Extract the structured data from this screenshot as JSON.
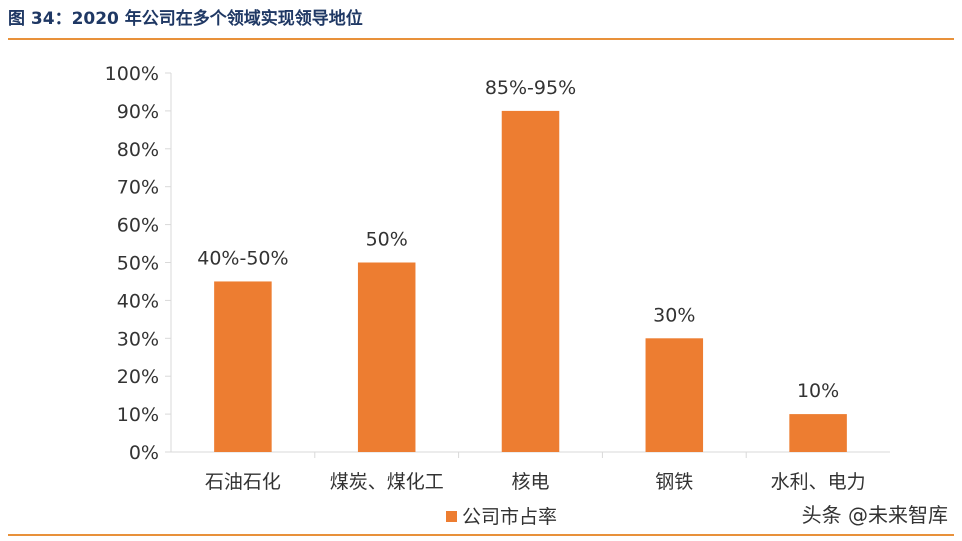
{
  "figure_title": "图 34：2020 年公司在多个领域实现领导地位",
  "watermark": "头条 @未来智库",
  "colors": {
    "bar": "#ed7d31",
    "title": "#1f3864",
    "rule": "#e8913a",
    "axis": "#d9d9d9",
    "text": "#333333"
  },
  "chart_data": {
    "type": "bar",
    "title": "",
    "xlabel": "",
    "ylabel": "",
    "categories": [
      "石油石化",
      "煤炭、煤化工",
      "核电",
      "钢铁",
      "水利、电力"
    ],
    "series": [
      {
        "name": "公司市占率",
        "values": [
          45,
          50,
          90,
          30,
          10
        ],
        "data_labels": [
          "40%-50%",
          "50%",
          "85%-95%",
          "30%",
          "10%"
        ]
      }
    ],
    "ylim": [
      0,
      100
    ],
    "yticks": [
      0,
      10,
      20,
      30,
      40,
      50,
      60,
      70,
      80,
      90,
      100
    ],
    "ytick_labels": [
      "0%",
      "10%",
      "20%",
      "30%",
      "40%",
      "50%",
      "60%",
      "70%",
      "80%",
      "90%",
      "100%"
    ],
    "grid": false,
    "legend": "bottom-center"
  }
}
